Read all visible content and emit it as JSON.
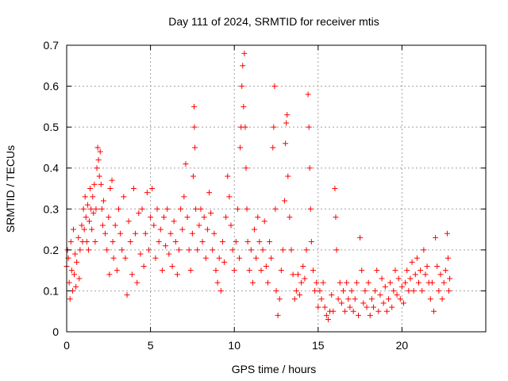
{
  "chart_data": {
    "type": "scatter",
    "title": "Day 111 of 2024, SRMTID for receiver mtis",
    "xlabel": "GPS time / hours",
    "ylabel": "SRMTID / TECUs",
    "xlim": [
      0,
      25
    ],
    "ylim": [
      0,
      0.7
    ],
    "x_ticks": [
      0,
      5,
      10,
      15,
      20
    ],
    "x_tick_labels": [
      "0",
      "5",
      "10",
      "15",
      "20"
    ],
    "y_ticks": [
      0,
      0.1,
      0.2,
      0.3,
      0.4,
      0.5,
      0.6,
      0.7
    ],
    "y_tick_labels": [
      "0",
      "0.1",
      "0.2",
      "0.3",
      "0.4",
      "0.5",
      "0.6",
      "0.7"
    ],
    "grid": true,
    "marker": "plus",
    "marker_color": "#ff0000",
    "series": [
      {
        "name": "mtis",
        "points": [
          [
            0,
            0.16
          ],
          [
            0.05,
            0.2
          ],
          [
            0.1,
            0.18
          ],
          [
            0.15,
            0.12
          ],
          [
            0.2,
            0.08
          ],
          [
            0.25,
            0.22
          ],
          [
            0.3,
            0.15
          ],
          [
            0.35,
            0.1
          ],
          [
            0.4,
            0.25
          ],
          [
            0.45,
            0.14
          ],
          [
            0.5,
            0.19
          ],
          [
            0.55,
            0.11
          ],
          [
            0.6,
            0.17
          ],
          [
            0.7,
            0.23
          ],
          [
            0.75,
            0.13
          ],
          [
            0.8,
            0.2
          ],
          [
            0.9,
            0.26
          ],
          [
            0.95,
            0.22
          ],
          [
            1.0,
            0.3
          ],
          [
            1.05,
            0.25
          ],
          [
            1.1,
            0.33
          ],
          [
            1.15,
            0.28
          ],
          [
            1.2,
            0.22
          ],
          [
            1.25,
            0.31
          ],
          [
            1.3,
            0.2
          ],
          [
            1.35,
            0.27
          ],
          [
            1.4,
            0.35
          ],
          [
            1.45,
            0.3
          ],
          [
            1.5,
            0.25
          ],
          [
            1.55,
            0.33
          ],
          [
            1.6,
            0.29
          ],
          [
            1.65,
            0.36
          ],
          [
            1.7,
            0.22
          ],
          [
            1.75,
            0.3
          ],
          [
            1.8,
            0.4
          ],
          [
            1.85,
            0.45
          ],
          [
            1.9,
            0.42
          ],
          [
            1.95,
            0.38
          ],
          [
            2.0,
            0.44
          ],
          [
            2.05,
            0.36
          ],
          [
            2.1,
            0.3
          ],
          [
            2.15,
            0.26
          ],
          [
            2.2,
            0.32
          ],
          [
            2.3,
            0.24
          ],
          [
            2.4,
            0.2
          ],
          [
            2.5,
            0.28
          ],
          [
            2.55,
            0.14
          ],
          [
            2.6,
            0.35
          ],
          [
            2.7,
            0.37
          ],
          [
            2.75,
            0.22
          ],
          [
            2.8,
            0.18
          ],
          [
            2.9,
            0.26
          ],
          [
            3.0,
            0.15
          ],
          [
            3.1,
            0.3
          ],
          [
            3.2,
            0.24
          ],
          [
            3.3,
            0.2
          ],
          [
            3.4,
            0.33
          ],
          [
            3.5,
            0.18
          ],
          [
            3.6,
            0.09
          ],
          [
            3.7,
            0.27
          ],
          [
            3.8,
            0.22
          ],
          [
            3.9,
            0.14
          ],
          [
            4.0,
            0.35
          ],
          [
            4.1,
            0.24
          ],
          [
            4.2,
            0.12
          ],
          [
            4.3,
            0.29
          ],
          [
            4.4,
            0.19
          ],
          [
            4.5,
            0.3
          ],
          [
            4.6,
            0.16
          ],
          [
            4.7,
            0.24
          ],
          [
            4.8,
            0.34
          ],
          [
            4.9,
            0.2
          ],
          [
            5.0,
            0.28
          ],
          [
            5.1,
            0.35
          ],
          [
            5.2,
            0.26
          ],
          [
            5.3,
            0.18
          ],
          [
            5.4,
            0.3
          ],
          [
            5.5,
            0.22
          ],
          [
            5.6,
            0.25
          ],
          [
            5.7,
            0.15
          ],
          [
            5.8,
            0.28
          ],
          [
            5.9,
            0.21
          ],
          [
            6.0,
            0.3
          ],
          [
            6.1,
            0.19
          ],
          [
            6.2,
            0.24
          ],
          [
            6.3,
            0.16
          ],
          [
            6.4,
            0.27
          ],
          [
            6.5,
            0.22
          ],
          [
            6.6,
            0.14
          ],
          [
            6.7,
            0.2
          ],
          [
            6.8,
            0.3
          ],
          [
            6.9,
            0.25
          ],
          [
            7.0,
            0.33
          ],
          [
            7.1,
            0.41
          ],
          [
            7.2,
            0.28
          ],
          [
            7.3,
            0.2
          ],
          [
            7.4,
            0.15
          ],
          [
            7.5,
            0.24
          ],
          [
            7.55,
            0.38
          ],
          [
            7.6,
            0.55
          ],
          [
            7.62,
            0.5
          ],
          [
            7.65,
            0.45
          ],
          [
            7.7,
            0.3
          ],
          [
            7.8,
            0.2
          ],
          [
            7.9,
            0.26
          ],
          [
            8.0,
            0.3
          ],
          [
            8.1,
            0.22
          ],
          [
            8.2,
            0.28
          ],
          [
            8.3,
            0.18
          ],
          [
            8.4,
            0.25
          ],
          [
            8.5,
            0.34
          ],
          [
            8.6,
            0.29
          ],
          [
            8.7,
            0.2
          ],
          [
            8.8,
            0.24
          ],
          [
            8.9,
            0.15
          ],
          [
            9.0,
            0.12
          ],
          [
            9.1,
            0.18
          ],
          [
            9.2,
            0.1
          ],
          [
            9.3,
            0.22
          ],
          [
            9.4,
            0.17
          ],
          [
            9.5,
            0.28
          ],
          [
            9.6,
            0.38
          ],
          [
            9.7,
            0.33
          ],
          [
            9.8,
            0.26
          ],
          [
            9.9,
            0.2
          ],
          [
            10.0,
            0.15
          ],
          [
            10.1,
            0.22
          ],
          [
            10.2,
            0.3
          ],
          [
            10.3,
            0.18
          ],
          [
            10.35,
            0.45
          ],
          [
            10.4,
            0.5
          ],
          [
            10.45,
            0.6
          ],
          [
            10.5,
            0.65
          ],
          [
            10.55,
            0.55
          ],
          [
            10.6,
            0.68
          ],
          [
            10.65,
            0.5
          ],
          [
            10.7,
            0.4
          ],
          [
            10.75,
            0.3
          ],
          [
            10.8,
            0.22
          ],
          [
            10.9,
            0.15
          ],
          [
            11.0,
            0.2
          ],
          [
            11.1,
            0.12
          ],
          [
            11.2,
            0.25
          ],
          [
            11.3,
            0.18
          ],
          [
            11.4,
            0.28
          ],
          [
            11.5,
            0.22
          ],
          [
            11.6,
            0.15
          ],
          [
            11.7,
            0.2
          ],
          [
            11.8,
            0.27
          ],
          [
            11.9,
            0.16
          ],
          [
            12.0,
            0.12
          ],
          [
            12.1,
            0.22
          ],
          [
            12.2,
            0.18
          ],
          [
            12.3,
            0.45
          ],
          [
            12.35,
            0.5
          ],
          [
            12.4,
            0.6
          ],
          [
            12.45,
            0.3
          ],
          [
            12.5,
            0.1
          ],
          [
            12.6,
            0.04
          ],
          [
            12.7,
            0.08
          ],
          [
            12.8,
            0.15
          ],
          [
            12.9,
            0.2
          ],
          [
            13.0,
            0.32
          ],
          [
            13.05,
            0.46
          ],
          [
            13.1,
            0.51
          ],
          [
            13.15,
            0.53
          ],
          [
            13.2,
            0.38
          ],
          [
            13.3,
            0.28
          ],
          [
            13.4,
            0.2
          ],
          [
            13.5,
            0.14
          ],
          [
            13.6,
            0.08
          ],
          [
            13.7,
            0.1
          ],
          [
            13.8,
            0.14
          ],
          [
            13.9,
            0.09
          ],
          [
            14.0,
            0.12
          ],
          [
            14.1,
            0.16
          ],
          [
            14.2,
            0.13
          ],
          [
            14.3,
            0.2
          ],
          [
            14.4,
            0.58
          ],
          [
            14.45,
            0.5
          ],
          [
            14.5,
            0.4
          ],
          [
            14.55,
            0.3
          ],
          [
            14.6,
            0.22
          ],
          [
            14.7,
            0.15
          ],
          [
            14.8,
            0.1
          ],
          [
            14.9,
            0.12
          ],
          [
            15.0,
            0.06
          ],
          [
            15.1,
            0.1
          ],
          [
            15.2,
            0.08
          ],
          [
            15.3,
            0.12
          ],
          [
            15.4,
            0.06
          ],
          [
            15.5,
            0.04
          ],
          [
            15.6,
            0.03
          ],
          [
            15.7,
            0.05
          ],
          [
            15.8,
            0.09
          ],
          [
            15.9,
            0.05
          ],
          [
            16.0,
            0.35
          ],
          [
            16.05,
            0.28
          ],
          [
            16.1,
            0.2
          ],
          [
            16.2,
            0.08
          ],
          [
            16.3,
            0.12
          ],
          [
            16.4,
            0.07
          ],
          [
            16.5,
            0.1
          ],
          [
            16.6,
            0.05
          ],
          [
            16.7,
            0.12
          ],
          [
            16.8,
            0.08
          ],
          [
            16.9,
            0.06
          ],
          [
            17.0,
            0.1
          ],
          [
            17.1,
            0.05
          ],
          [
            17.2,
            0.08
          ],
          [
            17.3,
            0.12
          ],
          [
            17.4,
            0.04
          ],
          [
            17.5,
            0.23
          ],
          [
            17.6,
            0.15
          ],
          [
            17.7,
            0.07
          ],
          [
            17.8,
            0.1
          ],
          [
            17.9,
            0.06
          ],
          [
            18.0,
            0.12
          ],
          [
            18.1,
            0.04
          ],
          [
            18.2,
            0.08
          ],
          [
            18.3,
            0.06
          ],
          [
            18.4,
            0.1
          ],
          [
            18.5,
            0.15
          ],
          [
            18.6,
            0.05
          ],
          [
            18.7,
            0.09
          ],
          [
            18.8,
            0.13
          ],
          [
            18.9,
            0.07
          ],
          [
            19.0,
            0.11
          ],
          [
            19.1,
            0.05
          ],
          [
            19.2,
            0.08
          ],
          [
            19.3,
            0.12
          ],
          [
            19.4,
            0.06
          ],
          [
            19.5,
            0.1
          ],
          [
            19.6,
            0.15
          ],
          [
            19.7,
            0.09
          ],
          [
            19.8,
            0.13
          ],
          [
            19.9,
            0.08
          ],
          [
            20.0,
            0.11
          ],
          [
            20.1,
            0.07
          ],
          [
            20.2,
            0.12
          ],
          [
            20.3,
            0.15
          ],
          [
            20.4,
            0.1
          ],
          [
            20.5,
            0.13
          ],
          [
            20.6,
            0.17
          ],
          [
            20.7,
            0.1
          ],
          [
            20.8,
            0.14
          ],
          [
            20.9,
            0.18
          ],
          [
            21.0,
            0.12
          ],
          [
            21.1,
            0.15
          ],
          [
            21.2,
            0.1
          ],
          [
            21.3,
            0.2
          ],
          [
            21.4,
            0.14
          ],
          [
            21.5,
            0.16
          ],
          [
            21.6,
            0.12
          ],
          [
            21.7,
            0.08
          ],
          [
            21.8,
            0.12
          ],
          [
            21.9,
            0.05
          ],
          [
            22.0,
            0.23
          ],
          [
            22.1,
            0.16
          ],
          [
            22.2,
            0.1
          ],
          [
            22.3,
            0.14
          ],
          [
            22.4,
            0.08
          ],
          [
            22.5,
            0.12
          ],
          [
            22.6,
            0.15
          ],
          [
            22.7,
            0.24
          ],
          [
            22.75,
            0.18
          ],
          [
            22.8,
            0.1
          ],
          [
            22.85,
            0.13
          ]
        ]
      }
    ]
  }
}
